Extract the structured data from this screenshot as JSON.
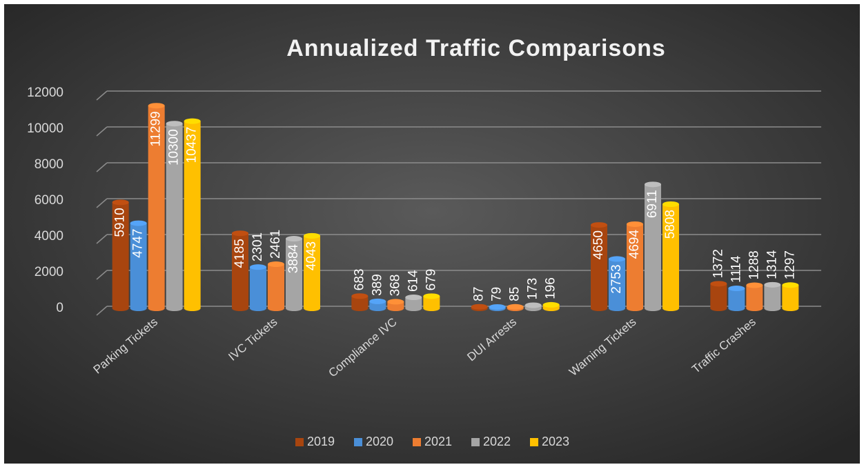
{
  "chart_data": {
    "type": "bar",
    "title": "Annualized Traffic Comparisons",
    "categories": [
      "Parking Tickets",
      "IVC Tickets",
      "Compliance IVC",
      "DUI Arrests",
      "Warning Tickets",
      "Traffic Crashes"
    ],
    "series": [
      {
        "name": "2019",
        "color": "#a8450f",
        "values": [
          5910,
          4185,
          683,
          87,
          4650,
          1372
        ]
      },
      {
        "name": "2020",
        "color": "#4a8fd8",
        "values": [
          4747,
          2301,
          389,
          79,
          2753,
          1114
        ]
      },
      {
        "name": "2021",
        "color": "#ed7d31",
        "values": [
          11299,
          2461,
          368,
          85,
          4694,
          1288
        ]
      },
      {
        "name": "2022",
        "color": "#a5a5a5",
        "values": [
          10300,
          3884,
          614,
          173,
          6911,
          1314
        ]
      },
      {
        "name": "2023",
        "color": "#ffc000",
        "values": [
          10437,
          4043,
          679,
          196,
          5808,
          1297
        ]
      }
    ],
    "ylim": [
      0,
      12000
    ],
    "yticks": [
      0,
      2000,
      4000,
      6000,
      8000,
      10000,
      12000
    ],
    "grid": true,
    "legend": "bottom"
  }
}
